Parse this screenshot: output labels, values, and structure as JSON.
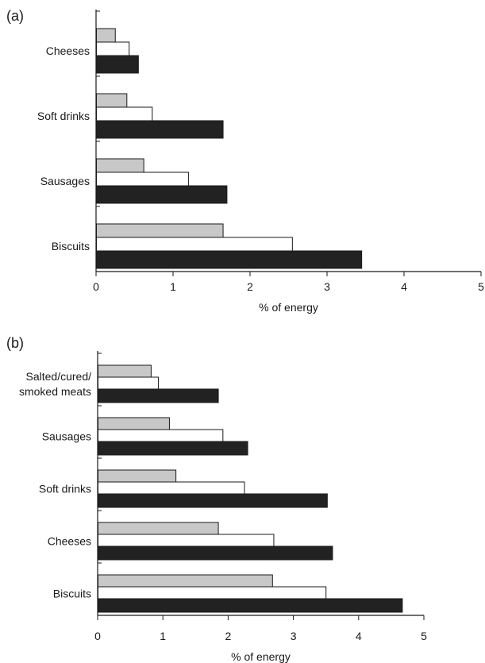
{
  "colors": {
    "series_1": "#c8c8c8",
    "series_2": "#ffffff",
    "series_3": "#222222",
    "axis": "#1a1a1a"
  },
  "chart_data": [
    {
      "panel_label": "(a)",
      "type": "bar",
      "orientation": "horizontal",
      "categories": [
        "Cheeses",
        "Soft drinks",
        "Sausages",
        "Biscuits"
      ],
      "series": [
        {
          "values": [
            0.25,
            0.4,
            0.62,
            1.65
          ]
        },
        {
          "values": [
            0.43,
            0.73,
            1.2,
            2.55
          ]
        },
        {
          "values": [
            0.55,
            1.65,
            1.7,
            3.45
          ]
        }
      ],
      "xlabel": "% of energy",
      "xlim": [
        0,
        5
      ],
      "xticks": [
        "0",
        "1",
        "2",
        "3",
        "4",
        "5"
      ],
      "grid": false,
      "legend": "none"
    },
    {
      "panel_label": "(b)",
      "type": "bar",
      "orientation": "horizontal",
      "categories": [
        "Salted/cured/\nsmoked meats",
        "Sausages",
        "Soft drinks",
        "Cheeses",
        "Biscuits"
      ],
      "series": [
        {
          "values": [
            0.82,
            1.1,
            1.2,
            1.85,
            2.68
          ]
        },
        {
          "values": [
            0.93,
            1.92,
            2.25,
            2.7,
            3.5
          ]
        },
        {
          "values": [
            1.85,
            2.3,
            3.52,
            3.6,
            4.67
          ]
        }
      ],
      "xlabel": "% of energy",
      "xlim": [
        0,
        5
      ],
      "xticks": [
        "0",
        "1",
        "2",
        "3",
        "4",
        "5"
      ],
      "grid": false,
      "legend": "none"
    }
  ]
}
